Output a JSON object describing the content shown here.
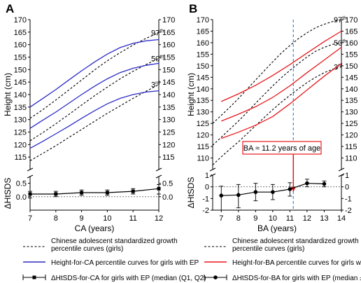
{
  "chart_data": [
    {
      "panel_label": "A",
      "type": "line",
      "xlabel": "CA (years)",
      "ylabel_top": "Height (cm)",
      "ylabel_bottom": "ΔHtSDS",
      "xlim": [
        7,
        12
      ],
      "xticks": [
        "7",
        "8",
        "9",
        "10",
        "11",
        "12"
      ],
      "top_ylim": [
        110,
        170
      ],
      "top_yticks": [
        "115",
        "120",
        "125",
        "130",
        "135",
        "140",
        "145",
        "150",
        "155",
        "160",
        "165",
        "170"
      ],
      "bottom_ylim": [
        -0.5,
        0.75
      ],
      "bottom_yticks_left": [
        "0.0",
        "0.5"
      ],
      "bottom_yticks_right": [
        "0.0",
        "0.5"
      ],
      "series": [
        {
          "kind": "reference",
          "color": "#000000",
          "dash": true,
          "label": "97th",
          "x": [
            7,
            7.5,
            8,
            8.5,
            9,
            9.5,
            10,
            10.5,
            11,
            11.5,
            12
          ],
          "y": [
            130.5,
            134,
            137.8,
            141.8,
            145.8,
            149.8,
            153.5,
            156.8,
            159.8,
            162.5,
            164.8
          ]
        },
        {
          "kind": "reference",
          "color": "#000000",
          "dash": true,
          "label": "50th",
          "x": [
            7,
            7.5,
            8,
            8.5,
            9,
            9.5,
            10,
            10.5,
            11,
            11.5,
            12
          ],
          "y": [
            121.5,
            124.8,
            128.3,
            132,
            135.8,
            139.5,
            143,
            146.3,
            149.3,
            152,
            154.5
          ]
        },
        {
          "kind": "reference",
          "color": "#000000",
          "dash": true,
          "label": "3rd",
          "x": [
            7,
            7.5,
            8,
            8.5,
            9,
            9.5,
            10,
            10.5,
            11,
            11.5,
            12
          ],
          "y": [
            113.5,
            116.5,
            119.5,
            122.8,
            126,
            129.3,
            132.5,
            135.5,
            138.5,
            141.3,
            144
          ]
        },
        {
          "kind": "ep",
          "color": "#2b2bc8",
          "x": [
            7,
            7.5,
            8,
            8.5,
            9,
            9.5,
            10,
            10.5,
            11,
            11.5,
            12
          ],
          "y": [
            135,
            138.5,
            142,
            145.8,
            149.5,
            153,
            156.2,
            158.8,
            160.5,
            161.5,
            162
          ]
        },
        {
          "kind": "ep",
          "color": "#2b2bc8",
          "x": [
            7,
            7.5,
            8,
            8.5,
            9,
            9.5,
            10,
            10.5,
            11,
            11.5,
            12
          ],
          "y": [
            126.5,
            129.8,
            133,
            136.5,
            140,
            143.3,
            146.3,
            148.8,
            150.5,
            151.7,
            152.5
          ]
        },
        {
          "kind": "ep",
          "color": "#2b2bc8",
          "x": [
            7,
            7.5,
            8,
            8.5,
            9,
            9.5,
            10,
            10.5,
            11,
            11.5,
            12
          ],
          "y": [
            118.5,
            121.3,
            124.3,
            127.3,
            130.5,
            133.5,
            136.3,
            138.5,
            140,
            141,
            141.5
          ]
        }
      ],
      "delta_series": {
        "x": [
          7,
          8,
          9,
          10,
          11,
          12
        ],
        "median": [
          0.1,
          0.1,
          0.15,
          0.15,
          0.2,
          0.3
        ],
        "low": [
          -0.05,
          0.0,
          0.05,
          0.05,
          0.1,
          0.1
        ],
        "high": [
          0.2,
          0.2,
          0.25,
          0.25,
          0.3,
          0.45
        ]
      },
      "legend": [
        {
          "style": "dashed",
          "text": "Chinese adolescent standardized growth percentile curves (girls)"
        },
        {
          "style": "solid-blue",
          "text": "Height-for-CA percentile curves for girls with EP"
        },
        {
          "style": "errorbar-square",
          "text": "ΔHtSDS-for-CA for girls with EP (median (Q1, Q2)"
        }
      ]
    },
    {
      "panel_label": "B",
      "type": "line",
      "xlabel": "BA (years)",
      "ylabel_top": "Height (cm)",
      "ylabel_bottom": "ΔHtSDS",
      "xlim": [
        6.5,
        14
      ],
      "xticks": [
        "7",
        "8",
        "9",
        "10",
        "11",
        "12",
        "13",
        "14"
      ],
      "top_ylim": [
        105,
        170
      ],
      "top_yticks": [
        "110",
        "115",
        "120",
        "125",
        "130",
        "135",
        "140",
        "145",
        "150",
        "155",
        "160",
        "165",
        "170"
      ],
      "bottom_ylim": [
        -2,
        1
      ],
      "bottom_yticks_left": [
        "-2",
        "-1",
        "0",
        "1"
      ],
      "bottom_yticks_right": [
        "-2",
        "-1",
        "0",
        "1"
      ],
      "series": [
        {
          "kind": "reference",
          "color": "#000000",
          "dash": true,
          "label": "97th",
          "x": [
            6.5,
            7,
            7.5,
            8,
            8.5,
            9,
            9.5,
            10,
            10.5,
            11,
            11.5,
            12,
            12.5,
            13,
            13.5,
            14
          ],
          "y": [
            125,
            128.5,
            132,
            135.8,
            139.8,
            143.8,
            147.8,
            151.7,
            155.5,
            158.8,
            161.8,
            164.3,
            166.5,
            168,
            169.2,
            170
          ]
        },
        {
          "kind": "reference",
          "color": "#000000",
          "dash": true,
          "label": "50th",
          "x": [
            6.5,
            7,
            7.5,
            8,
            8.5,
            9,
            9.5,
            10,
            10.5,
            11,
            11.5,
            12,
            12.5,
            13,
            13.5,
            14
          ],
          "y": [
            115.5,
            119,
            122.5,
            126,
            129.8,
            133.7,
            137.5,
            141.3,
            144.8,
            148,
            151,
            153.8,
            156.3,
            158,
            159.3,
            160
          ]
        },
        {
          "kind": "reference",
          "color": "#000000",
          "dash": true,
          "label": "3rd",
          "x": [
            6.5,
            7,
            7.5,
            8,
            8.5,
            9,
            9.5,
            10,
            10.5,
            11,
            11.5,
            12,
            12.5,
            13,
            13.5,
            14
          ],
          "y": [
            107,
            110.5,
            113.8,
            117,
            120.5,
            124,
            127.5,
            131,
            134.2,
            137.2,
            140,
            142.7,
            145,
            147,
            148.5,
            149.5
          ]
        },
        {
          "kind": "ep",
          "color": "#e8191c",
          "x": [
            7,
            8,
            9,
            10,
            11,
            12,
            13,
            14
          ],
          "y": [
            134.5,
            137.8,
            141.5,
            145.8,
            150.5,
            155.5,
            160.5,
            165
          ]
        },
        {
          "kind": "ep",
          "color": "#e8191c",
          "x": [
            7,
            8,
            9,
            10,
            11,
            12,
            13,
            14
          ],
          "y": [
            126,
            129,
            132.2,
            136.3,
            141.3,
            147,
            152.5,
            158
          ]
        },
        {
          "kind": "ep",
          "color": "#e8191c",
          "x": [
            7,
            8,
            9,
            10,
            11,
            12,
            13,
            14
          ],
          "y": [
            118.5,
            121.2,
            124.2,
            128,
            133.5,
            139.5,
            145.5,
            151
          ]
        }
      ],
      "vline_x": 11.2,
      "annotation": "BA ≈ 11.2 years of age",
      "delta_series": {
        "x": [
          7,
          8,
          9,
          10,
          11,
          12,
          13
        ],
        "median": [
          -0.75,
          -0.7,
          -0.45,
          -0.45,
          -0.2,
          0.3,
          0.25
        ],
        "low": [
          -2.0,
          -1.8,
          -1.2,
          -1.1,
          -0.8,
          0.0,
          0.0
        ],
        "high": [
          0.05,
          0.2,
          0.3,
          0.2,
          0.35,
          0.65,
          0.5
        ]
      },
      "legend": [
        {
          "style": "dashed",
          "text": "Chinese adolescent standardized growth percentile curves (girls)"
        },
        {
          "style": "solid-red",
          "text": "Height-for-BA percentile curves for girls with EP"
        },
        {
          "style": "errorbar-circle",
          "text": "ΔHtSDS-for-BA for girls with EP (median ± SD)"
        }
      ]
    }
  ]
}
